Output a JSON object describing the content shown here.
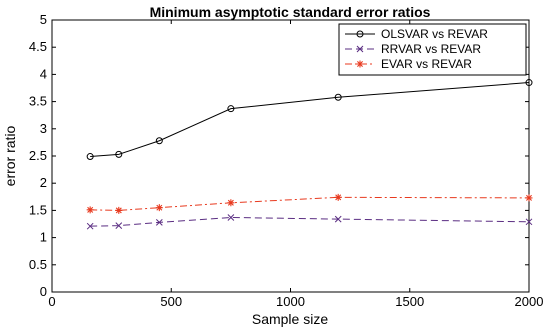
{
  "chart_data": {
    "type": "line",
    "title": "Minimum asymptotic standard error ratios",
    "xlabel": "Sample size",
    "ylabel": "error ratio",
    "xlim": [
      0,
      2000
    ],
    "ylim": [
      0,
      5
    ],
    "xticks": [
      0,
      500,
      1000,
      1500,
      2000
    ],
    "yticks": [
      0,
      0.5,
      1,
      1.5,
      2,
      2.5,
      3,
      3.5,
      4,
      4.5,
      5
    ],
    "grid": false,
    "legend_position": "top-right",
    "series": [
      {
        "name": "OLSVAR vs REVAR",
        "color": "#000000",
        "line_style": "solid",
        "marker": "circle",
        "x": [
          160,
          280,
          450,
          750,
          1200,
          2000
        ],
        "y": [
          2.49,
          2.53,
          2.78,
          3.37,
          3.58,
          3.85
        ]
      },
      {
        "name": "RRVAR vs REVAR",
        "color": "#5a2d82",
        "line_style": "dashed",
        "marker": "x",
        "x": [
          160,
          280,
          450,
          750,
          1200,
          2000
        ],
        "y": [
          1.21,
          1.22,
          1.28,
          1.37,
          1.34,
          1.29
        ]
      },
      {
        "name": "EVAR vs REVAR",
        "color": "#e83a1f",
        "line_style": "dashdot",
        "marker": "star",
        "x": [
          160,
          280,
          450,
          750,
          1200,
          2000
        ],
        "y": [
          1.51,
          1.5,
          1.55,
          1.64,
          1.74,
          1.73
        ]
      }
    ]
  }
}
